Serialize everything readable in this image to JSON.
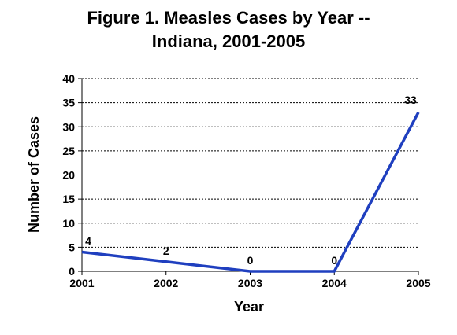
{
  "chart_data": {
    "type": "line",
    "title_line1": "Figure 1. Measles Cases by Year --",
    "title_line2": "Indiana, 2001-2005",
    "xlabel": "Year",
    "ylabel": "Number of Cases",
    "categories": [
      "2001",
      "2002",
      "2003",
      "2004",
      "2005"
    ],
    "series": [
      {
        "values": [
          4,
          2,
          0,
          0,
          33
        ],
        "color": "#1f3fbf"
      }
    ],
    "data_labels": [
      "4",
      "2",
      "0",
      "0",
      "33"
    ],
    "ylim": [
      0,
      40
    ],
    "yticks": [
      0,
      5,
      10,
      15,
      20,
      25,
      30,
      35,
      40
    ],
    "grid": "horizontal-dotted",
    "legend": "none"
  }
}
